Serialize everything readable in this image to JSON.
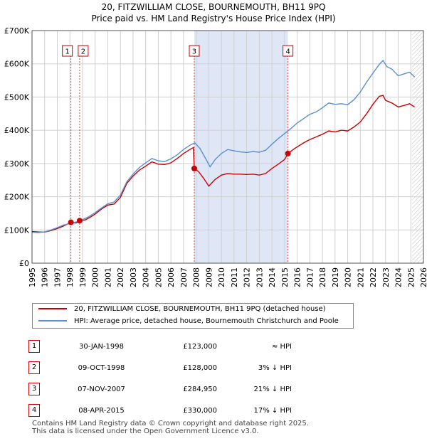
{
  "header": {
    "title_line1": "20, FITZWILLIAM CLOSE, BOURNEMOUTH, BH11 9PQ",
    "title_line2": "Price paid vs. HM Land Registry's House Price Index (HPI)"
  },
  "colors": {
    "property": "#cc0000",
    "hpi": "#5b8fcf",
    "shade": "#dfe7f7",
    "grid": "#d0d0d0",
    "marker_border": "#cc0000"
  },
  "chart_data": {
    "type": "line",
    "xlim": [
      1995,
      2026
    ],
    "ylim": [
      0,
      700000
    ],
    "yticks": [
      0,
      100000,
      200000,
      300000,
      400000,
      500000,
      600000,
      700000
    ],
    "ytick_labels": [
      "£0",
      "£100K",
      "£200K",
      "£300K",
      "£400K",
      "£500K",
      "£600K",
      "£700K"
    ],
    "xticks": [
      "1995",
      "1996",
      "1997",
      "1998",
      "1999",
      "2000",
      "2001",
      "2002",
      "2003",
      "2004",
      "2005",
      "2006",
      "2007",
      "2008",
      "2009",
      "2010",
      "2011",
      "2012",
      "2013",
      "2014",
      "2015",
      "2016",
      "2017",
      "2018",
      "2019",
      "2020",
      "2021",
      "2022",
      "2023",
      "2024",
      "2025",
      "2026"
    ],
    "shaded_period": [
      2007.85,
      2015.27
    ],
    "hatched_from": 2025.1,
    "series": [
      {
        "name": "20, FITZWILLIAM CLOSE, BOURNEMOUTH, BH11 9PQ (detached house)",
        "color": "#cc0000",
        "points": [
          [
            1995.0,
            95000
          ],
          [
            1995.5,
            94000
          ],
          [
            1996.0,
            93500
          ],
          [
            1996.5,
            98000
          ],
          [
            1997.0,
            104000
          ],
          [
            1997.5,
            112000
          ],
          [
            1998.08,
            123000
          ],
          [
            1998.5,
            121000
          ],
          [
            1998.77,
            128000
          ],
          [
            1999.2,
            130000
          ],
          [
            1999.6,
            138000
          ],
          [
            2000.0,
            148000
          ],
          [
            2000.5,
            163000
          ],
          [
            2001.0,
            175000
          ],
          [
            2001.5,
            178000
          ],
          [
            2002.0,
            198000
          ],
          [
            2002.5,
            240000
          ],
          [
            2003.0,
            262000
          ],
          [
            2003.5,
            280000
          ],
          [
            2004.0,
            292000
          ],
          [
            2004.5,
            305000
          ],
          [
            2005.0,
            298000
          ],
          [
            2005.5,
            297000
          ],
          [
            2006.0,
            302000
          ],
          [
            2006.5,
            315000
          ],
          [
            2007.0,
            330000
          ],
          [
            2007.5,
            342000
          ],
          [
            2007.78,
            348000
          ],
          [
            2007.85,
            284950
          ],
          [
            2008.2,
            275000
          ],
          [
            2008.6,
            255000
          ],
          [
            2009.0,
            232000
          ],
          [
            2009.5,
            252000
          ],
          [
            2010.0,
            265000
          ],
          [
            2010.5,
            270000
          ],
          [
            2011.0,
            268000
          ],
          [
            2011.5,
            268000
          ],
          [
            2012.0,
            267000
          ],
          [
            2012.5,
            268000
          ],
          [
            2013.0,
            265000
          ],
          [
            2013.5,
            270000
          ],
          [
            2014.0,
            285000
          ],
          [
            2014.5,
            298000
          ],
          [
            2015.0,
            312000
          ],
          [
            2015.27,
            330000
          ],
          [
            2015.8,
            345000
          ],
          [
            2016.5,
            362000
          ],
          [
            2017.0,
            372000
          ],
          [
            2017.5,
            380000
          ],
          [
            2018.0,
            388000
          ],
          [
            2018.5,
            398000
          ],
          [
            2019.0,
            395000
          ],
          [
            2019.5,
            400000
          ],
          [
            2020.0,
            398000
          ],
          [
            2020.5,
            410000
          ],
          [
            2021.0,
            425000
          ],
          [
            2021.5,
            450000
          ],
          [
            2022.0,
            478000
          ],
          [
            2022.5,
            502000
          ],
          [
            2022.8,
            505000
          ],
          [
            2023.0,
            490000
          ],
          [
            2023.5,
            482000
          ],
          [
            2024.0,
            470000
          ],
          [
            2024.5,
            475000
          ],
          [
            2024.9,
            480000
          ],
          [
            2025.3,
            470000
          ]
        ]
      },
      {
        "name": "HPI: Average price, detached house, Bournemouth Christchurch and Poole",
        "color": "#5b8fcf",
        "points": [
          [
            1995.0,
            93000
          ],
          [
            1995.5,
            92000
          ],
          [
            1996.0,
            94000
          ],
          [
            1996.5,
            100000
          ],
          [
            1997.0,
            107000
          ],
          [
            1997.5,
            115000
          ],
          [
            1998.0,
            119000
          ],
          [
            1998.5,
            124000
          ],
          [
            1999.0,
            131000
          ],
          [
            1999.5,
            140000
          ],
          [
            2000.0,
            152000
          ],
          [
            2000.5,
            166000
          ],
          [
            2001.0,
            179000
          ],
          [
            2001.5,
            184000
          ],
          [
            2002.0,
            205000
          ],
          [
            2002.5,
            245000
          ],
          [
            2003.0,
            268000
          ],
          [
            2003.5,
            288000
          ],
          [
            2004.0,
            302000
          ],
          [
            2004.5,
            315000
          ],
          [
            2005.0,
            308000
          ],
          [
            2005.5,
            306000
          ],
          [
            2006.0,
            314000
          ],
          [
            2006.5,
            326000
          ],
          [
            2007.0,
            342000
          ],
          [
            2007.5,
            355000
          ],
          [
            2007.9,
            362000
          ],
          [
            2008.3,
            345000
          ],
          [
            2008.7,
            318000
          ],
          [
            2009.1,
            290000
          ],
          [
            2009.5,
            312000
          ],
          [
            2010.0,
            330000
          ],
          [
            2010.5,
            342000
          ],
          [
            2011.0,
            338000
          ],
          [
            2011.5,
            335000
          ],
          [
            2012.0,
            333000
          ],
          [
            2012.5,
            336000
          ],
          [
            2013.0,
            334000
          ],
          [
            2013.5,
            340000
          ],
          [
            2014.0,
            358000
          ],
          [
            2014.5,
            375000
          ],
          [
            2015.0,
            390000
          ],
          [
            2015.5,
            405000
          ],
          [
            2016.0,
            422000
          ],
          [
            2016.5,
            435000
          ],
          [
            2017.0,
            448000
          ],
          [
            2017.5,
            455000
          ],
          [
            2018.0,
            468000
          ],
          [
            2018.5,
            482000
          ],
          [
            2019.0,
            478000
          ],
          [
            2019.5,
            480000
          ],
          [
            2020.0,
            477000
          ],
          [
            2020.5,
            492000
          ],
          [
            2021.0,
            515000
          ],
          [
            2021.5,
            545000
          ],
          [
            2022.0,
            572000
          ],
          [
            2022.5,
            598000
          ],
          [
            2022.8,
            610000
          ],
          [
            2023.1,
            592000
          ],
          [
            2023.5,
            584000
          ],
          [
            2024.0,
            564000
          ],
          [
            2024.5,
            570000
          ],
          [
            2024.9,
            575000
          ],
          [
            2025.3,
            560000
          ]
        ]
      }
    ],
    "sale_markers": [
      {
        "label": "1",
        "x": 1998.08,
        "y": 123000
      },
      {
        "label": "2",
        "x": 1998.77,
        "y": 128000
      },
      {
        "label": "3",
        "x": 2007.85,
        "y": 284950
      },
      {
        "label": "4",
        "x": 2015.27,
        "y": 330000
      }
    ]
  },
  "legend": {
    "property_label": "20, FITZWILLIAM CLOSE, BOURNEMOUTH, BH11 9PQ (detached house)",
    "hpi_label": "HPI: Average price, detached house, Bournemouth Christchurch and Poole"
  },
  "sales": [
    {
      "num": "1",
      "date": "30-JAN-1998",
      "price": "£123,000",
      "hpi": "≈ HPI"
    },
    {
      "num": "2",
      "date": "09-OCT-1998",
      "price": "£128,000",
      "hpi": "3% ↓ HPI"
    },
    {
      "num": "3",
      "date": "07-NOV-2007",
      "price": "£284,950",
      "hpi": "21% ↓ HPI"
    },
    {
      "num": "4",
      "date": "08-APR-2015",
      "price": "£330,000",
      "hpi": "17% ↓ HPI"
    }
  ],
  "footer": {
    "line1": "Contains HM Land Registry data © Crown copyright and database right 2025.",
    "line2": "This data is licensed under the Open Government Licence v3.0."
  }
}
